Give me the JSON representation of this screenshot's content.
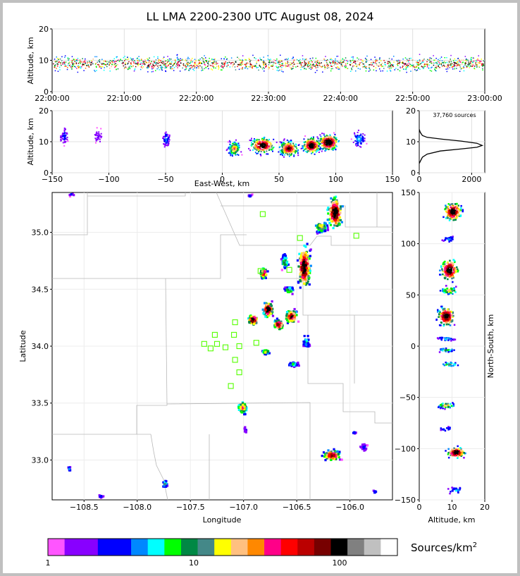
{
  "title": "LL LMA 2200-2300 UTC August 08, 2024",
  "chart_data": [
    {
      "name": "time-height",
      "type": "scatter",
      "ylabel": "Altitude, km",
      "ylim": [
        0,
        20
      ],
      "yticks": [
        "0",
        "10",
        "20"
      ],
      "xticks": [
        "22:00:00",
        "22:10:00",
        "22:20:00",
        "22:30:00",
        "22:40:00",
        "22:50:00",
        "23:00:00"
      ]
    },
    {
      "name": "east-west-altitude",
      "type": "scatter",
      "xlabel": "East-West, km",
      "ylabel": "Altitude, km",
      "xlim": [
        -150,
        150
      ],
      "ylim": [
        0,
        20
      ],
      "xticks": [
        "−150",
        "−100",
        "−50",
        "0",
        "50",
        "100",
        "150"
      ],
      "yticks": [
        "0",
        "10",
        "20"
      ]
    },
    {
      "name": "altitude-histogram",
      "type": "line",
      "annotation": "37,760 sources",
      "xlim": [
        0,
        2500
      ],
      "ylim": [
        0,
        20
      ],
      "xticks": [
        "0",
        "2000"
      ],
      "yticks": [
        "0",
        "10",
        "20"
      ],
      "x": [
        0,
        60,
        120,
        300,
        800,
        1500,
        2200,
        2400,
        2200,
        1600,
        900,
        300,
        120,
        40,
        0
      ],
      "y": [
        3,
        4,
        5,
        6,
        7,
        7.6,
        8.2,
        8.8,
        9.5,
        10.2,
        10.8,
        11.4,
        12,
        13,
        14
      ]
    },
    {
      "name": "plan-view",
      "type": "scatter",
      "xlabel": "Longitude",
      "ylabel": "Latitude",
      "xlim": [
        -108.8,
        -105.6
      ],
      "ylim": [
        32.65,
        35.35
      ],
      "xticks": [
        "−108.5",
        "−108.0",
        "−107.5",
        "−107.0",
        "−106.5",
        "−106.0"
      ],
      "yticks": [
        "33.0",
        "33.5",
        "34.0",
        "34.5",
        "35.0"
      ],
      "stations": [
        [
          -106.82,
          35.16
        ],
        [
          -106.47,
          34.95
        ],
        [
          -105.94,
          34.97
        ],
        [
          -106.84,
          34.66
        ],
        [
          -106.57,
          34.67
        ],
        [
          -107.08,
          34.21
        ],
        [
          -107.27,
          34.1
        ],
        [
          -107.09,
          34.1
        ],
        [
          -107.37,
          34.02
        ],
        [
          -107.25,
          34.02
        ],
        [
          -107.31,
          33.98
        ],
        [
          -107.17,
          33.99
        ],
        [
          -107.04,
          34.0
        ],
        [
          -106.88,
          34.03
        ],
        [
          -107.08,
          33.88
        ],
        [
          -107.04,
          33.77
        ],
        [
          -107.12,
          33.65
        ]
      ]
    },
    {
      "name": "altitude-north-south",
      "type": "scatter",
      "xlabel": "Altitude, km",
      "ylabel": "North-South, km",
      "xlim": [
        0,
        20
      ],
      "ylim": [
        -150,
        150
      ],
      "xticks": [
        "0",
        "10",
        "20"
      ],
      "yticks": [
        "−150",
        "−100",
        "−50",
        "0",
        "50",
        "100",
        "150"
      ]
    }
  ],
  "colorbar": {
    "unit": "Sources/km",
    "unit_exp": "2",
    "ticks": [
      "1",
      "10",
      "100"
    ],
    "colors": [
      "#ff55ff",
      "#8800ff",
      "#8800ff",
      "#0000ff",
      "#0000ff",
      "#0088ff",
      "#00ffff",
      "#00ff00",
      "#008844",
      "#448888",
      "#ffff00",
      "#ffc080",
      "#ff8800",
      "#ff0088",
      "#ff0000",
      "#bb0000",
      "#770000",
      "#000000",
      "#808080",
      "#c0c0c0",
      "#ffffff"
    ]
  }
}
